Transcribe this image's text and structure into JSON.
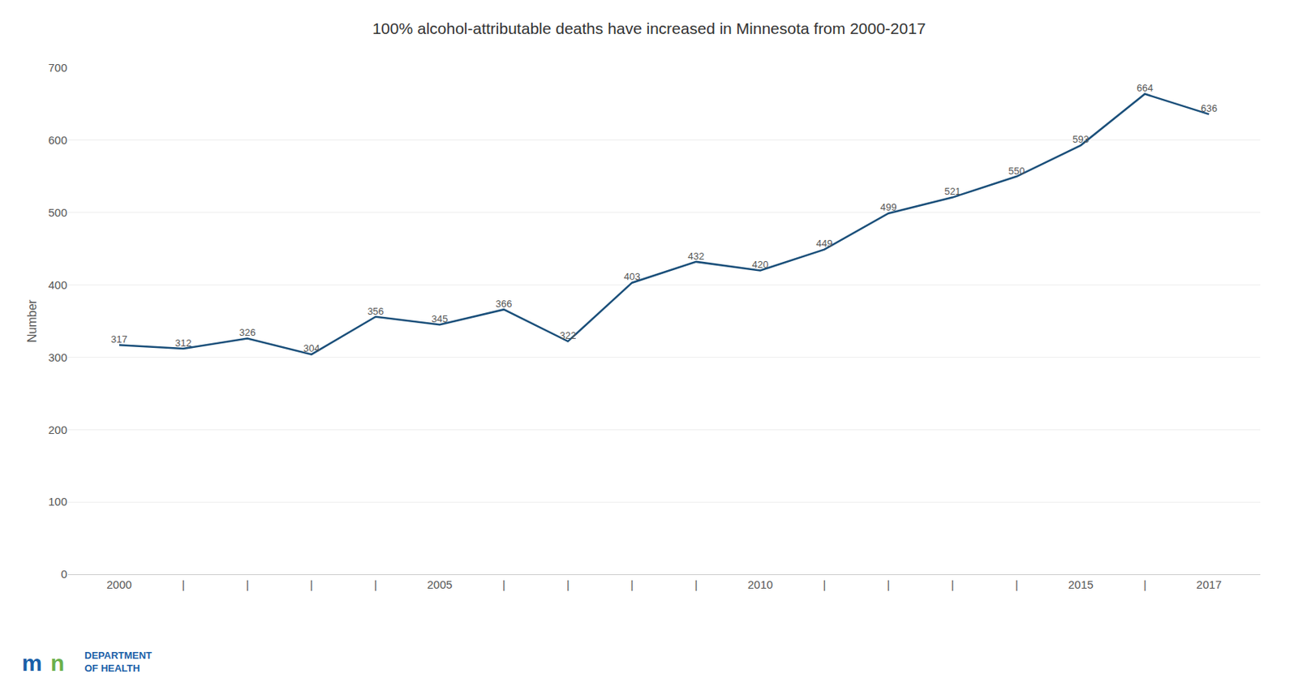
{
  "chart_data": {
    "type": "line",
    "title": "100% alcohol-attributable deaths have increased in Minnesota from 2000-2017",
    "x": [
      2000,
      2001,
      2002,
      2003,
      2004,
      2005,
      2006,
      2007,
      2008,
      2009,
      2010,
      2011,
      2012,
      2013,
      2014,
      2015,
      2016,
      2017
    ],
    "values": [
      317,
      312,
      326,
      304,
      356,
      345,
      366,
      322,
      403,
      432,
      420,
      449,
      499,
      521,
      550,
      593,
      664,
      636
    ],
    "color": "#1a4f7a",
    "ylabel": "Number",
    "xlim": [
      1999.2,
      2017.8
    ],
    "xticks": [
      2000,
      {
        "value": 2001,
        "label": "|"
      },
      {
        "value": 2002,
        "label": "|"
      },
      {
        "value": 2003,
        "label": "|"
      },
      {
        "value": 2004,
        "label": "|"
      },
      2005,
      {
        "value": 2006,
        "label": "|"
      },
      {
        "value": 2007,
        "label": "|"
      },
      {
        "value": 2008,
        "label": "|"
      },
      {
        "value": 2009,
        "label": "|"
      },
      2010,
      {
        "value": 2011,
        "label": "|"
      },
      {
        "value": 2012,
        "label": "|"
      },
      {
        "value": 2013,
        "label": "|"
      },
      {
        "value": 2014,
        "label": "|"
      },
      2015,
      {
        "value": 2016,
        "label": "|"
      },
      2017
    ],
    "ylim": [
      0,
      700
    ],
    "yticks": [
      0,
      100,
      200,
      300,
      400,
      500,
      600,
      700
    ],
    "grid": "y",
    "data_labels": true,
    "annotations": [
      {
        "text": "m",
        "color": "#1a5fa8"
      },
      {
        "text": "n",
        "color": "#6ab04c"
      },
      {
        "text": "DEPARTMENT",
        "color": "#1a5fa8"
      },
      {
        "text": "OF HEALTH",
        "color": "#1a5fa8"
      }
    ]
  }
}
